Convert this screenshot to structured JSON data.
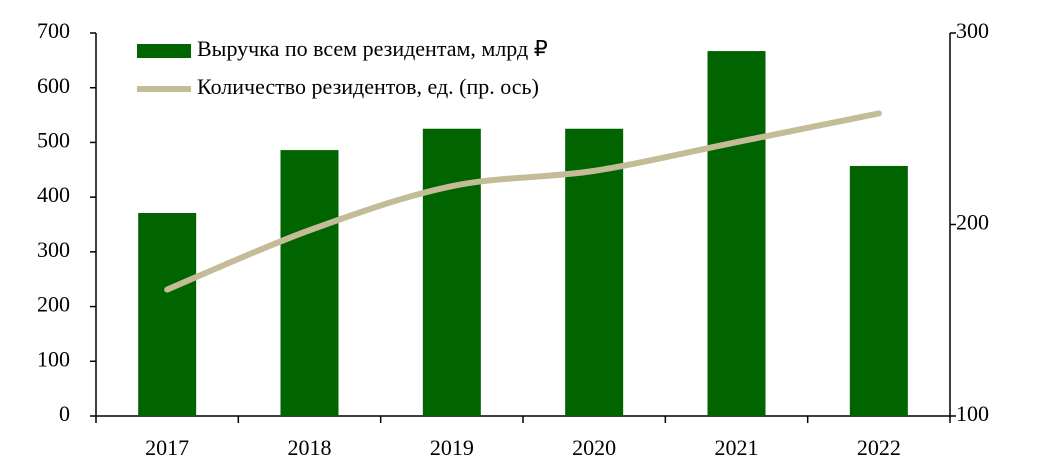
{
  "chart_data": {
    "type": "bar-line",
    "categories": [
      "2017",
      "2018",
      "2019",
      "2020",
      "2021",
      "2022"
    ],
    "series": [
      {
        "name": "Выручка по всем резидентам, млрд ₽",
        "type": "bar",
        "color": "#006400",
        "values": [
          371,
          486,
          525,
          525,
          667,
          457
        ]
      },
      {
        "name": "Количество резидентов, ед. (пр. ось)",
        "type": "line",
        "axis": "y2",
        "color": "#c4bc96",
        "values": [
          166,
          197,
          220,
          228,
          243,
          258
        ]
      }
    ],
    "ylim": [
      0,
      700
    ],
    "yticks": [
      0,
      100,
      200,
      300,
      400,
      500,
      600,
      700
    ],
    "y2lim": [
      100,
      300
    ],
    "y2ticks": [
      100,
      200,
      300
    ],
    "legend": "upper left",
    "grid": false
  }
}
